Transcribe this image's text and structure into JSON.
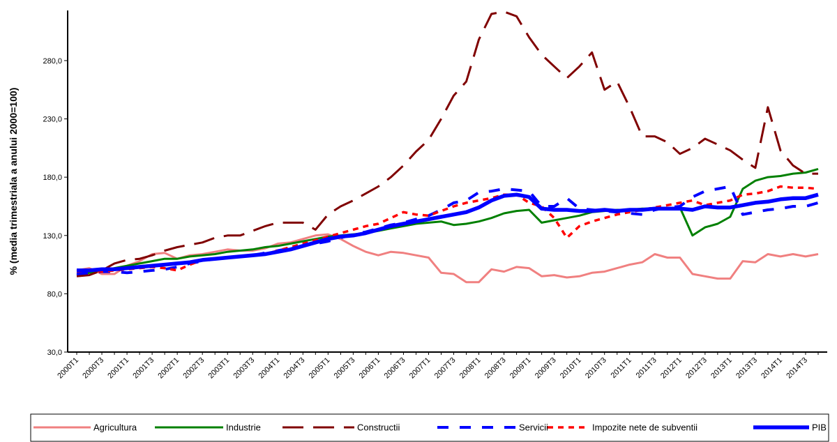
{
  "chart_data": {
    "type": "line",
    "y_label": "% (media trimestriala a anului 2000=100)",
    "categories": [
      "2000T1",
      null,
      "2000T3",
      null,
      "2001T1",
      null,
      "2001T3",
      null,
      "2002T1",
      null,
      "2002T3",
      null,
      "2003T1",
      null,
      "2003T3",
      null,
      "2004T1",
      null,
      "2004T3",
      null,
      "2005T1",
      null,
      "2005T3",
      null,
      "2006T1",
      null,
      "2006T3",
      null,
      "2007T1",
      null,
      "2007T3",
      null,
      "2008T1",
      null,
      "2008T3",
      null,
      "2009T1",
      null,
      "2009T3",
      null,
      "2010T1",
      null,
      "2010T3",
      null,
      "2011T1",
      null,
      "2011T3",
      null,
      "2012T1",
      null,
      "2012T3",
      null,
      "2013T1",
      null,
      "2013T3",
      null,
      "2014T1",
      null,
      "2014T3",
      null
    ],
    "ylim": [
      30,
      323
    ],
    "yticks": [
      {
        "value": 30,
        "label": "30,0"
      },
      {
        "value": 80,
        "label": "80,0"
      },
      {
        "value": 130,
        "label": "130,0"
      },
      {
        "value": 180,
        "label": "180,0"
      },
      {
        "value": 230,
        "label": "230,0"
      },
      {
        "value": 280,
        "label": "280,0"
      }
    ],
    "legend": "bottom",
    "series": [
      {
        "name": "Agricultura",
        "color": "#f08080",
        "style": "solid",
        "values": [
          100,
          102,
          97,
          97,
          104,
          108,
          114,
          115,
          110,
          113,
          114,
          116,
          118,
          117,
          117,
          119,
          123,
          124,
          127,
          130,
          131,
          127,
          121,
          116,
          113,
          116,
          115,
          113,
          111,
          98,
          97,
          90,
          90,
          101,
          99,
          103,
          102,
          95,
          96,
          94,
          95,
          98,
          99,
          102,
          105,
          107,
          114,
          111,
          111,
          97,
          95,
          93,
          93,
          108,
          107,
          114,
          112,
          114,
          112,
          114
        ]
      },
      {
        "name": "Industrie",
        "color": "#008000",
        "style": "solid",
        "values": [
          96,
          98,
          100,
          102,
          104,
          106,
          108,
          110,
          110,
          112,
          113,
          114,
          116,
          117,
          118,
          120,
          121,
          123,
          125,
          127,
          129,
          130,
          131,
          132,
          134,
          136,
          138,
          140,
          141,
          142,
          139,
          140,
          142,
          145,
          149,
          151,
          152,
          141,
          143,
          145,
          147,
          150,
          151,
          152,
          152,
          153,
          153,
          153,
          154,
          130,
          137,
          140,
          146,
          170,
          177,
          180,
          181,
          183,
          184,
          187
        ]
      },
      {
        "name": "Constructii",
        "color": "#800000",
        "style": "long-dash",
        "values": [
          95,
          96,
          100,
          106,
          109,
          110,
          113,
          117,
          120,
          122,
          124,
          128,
          130,
          130,
          134,
          138,
          141,
          141,
          141,
          135,
          148,
          155,
          160,
          166,
          172,
          180,
          190,
          202,
          212,
          230,
          250,
          262,
          298,
          320,
          322,
          318,
          300,
          285,
          275,
          265,
          275,
          287,
          255,
          262,
          240,
          215,
          215,
          210,
          200,
          205,
          213,
          208,
          203,
          195,
          188,
          240,
          203,
          190,
          183,
          183
        ]
      },
      {
        "name": "Servicii",
        "color": "#0000ff",
        "style": "dash",
        "values": [
          97,
          98,
          99,
          99,
          98,
          99,
          100,
          101,
          103,
          106,
          108,
          110,
          111,
          112,
          113,
          115,
          117,
          119,
          121,
          123,
          125,
          128,
          131,
          133,
          136,
          139,
          141,
          144,
          147,
          152,
          158,
          160,
          167,
          168,
          170,
          169,
          168,
          155,
          155,
          162,
          153,
          152,
          151,
          150,
          149,
          148,
          152,
          154,
          155,
          163,
          168,
          170,
          172,
          148,
          150,
          152,
          153,
          155,
          155,
          158
        ]
      },
      {
        "name": "Impozite nete de subventii",
        "color": "#ff0000",
        "style": "dot",
        "values": [
          99,
          100,
          99,
          100,
          101,
          102,
          103,
          102,
          100,
          105,
          109,
          110,
          111,
          112,
          113,
          114,
          117,
          120,
          123,
          126,
          129,
          132,
          135,
          138,
          140,
          145,
          150,
          148,
          147,
          151,
          155,
          158,
          160,
          162,
          165,
          165,
          158,
          155,
          145,
          128,
          138,
          142,
          145,
          148,
          150,
          152,
          154,
          156,
          158,
          160,
          156,
          158,
          160,
          165,
          166,
          168,
          172,
          171,
          171,
          170
        ]
      },
      {
        "name": "PIB",
        "color": "#0000ff",
        "style": "bold-solid",
        "values": [
          100,
          100,
          101,
          101,
          102,
          103,
          104,
          105,
          106,
          107,
          109,
          110,
          111,
          112,
          113,
          114,
          116,
          118,
          121,
          124,
          127,
          129,
          130,
          132,
          135,
          138,
          140,
          142,
          144,
          146,
          148,
          150,
          154,
          160,
          164,
          165,
          163,
          153,
          152,
          152,
          151,
          151,
          152,
          151,
          152,
          152,
          153,
          153,
          153,
          152,
          155,
          154,
          154,
          156,
          158,
          159,
          161,
          162,
          162,
          165
        ]
      }
    ]
  }
}
